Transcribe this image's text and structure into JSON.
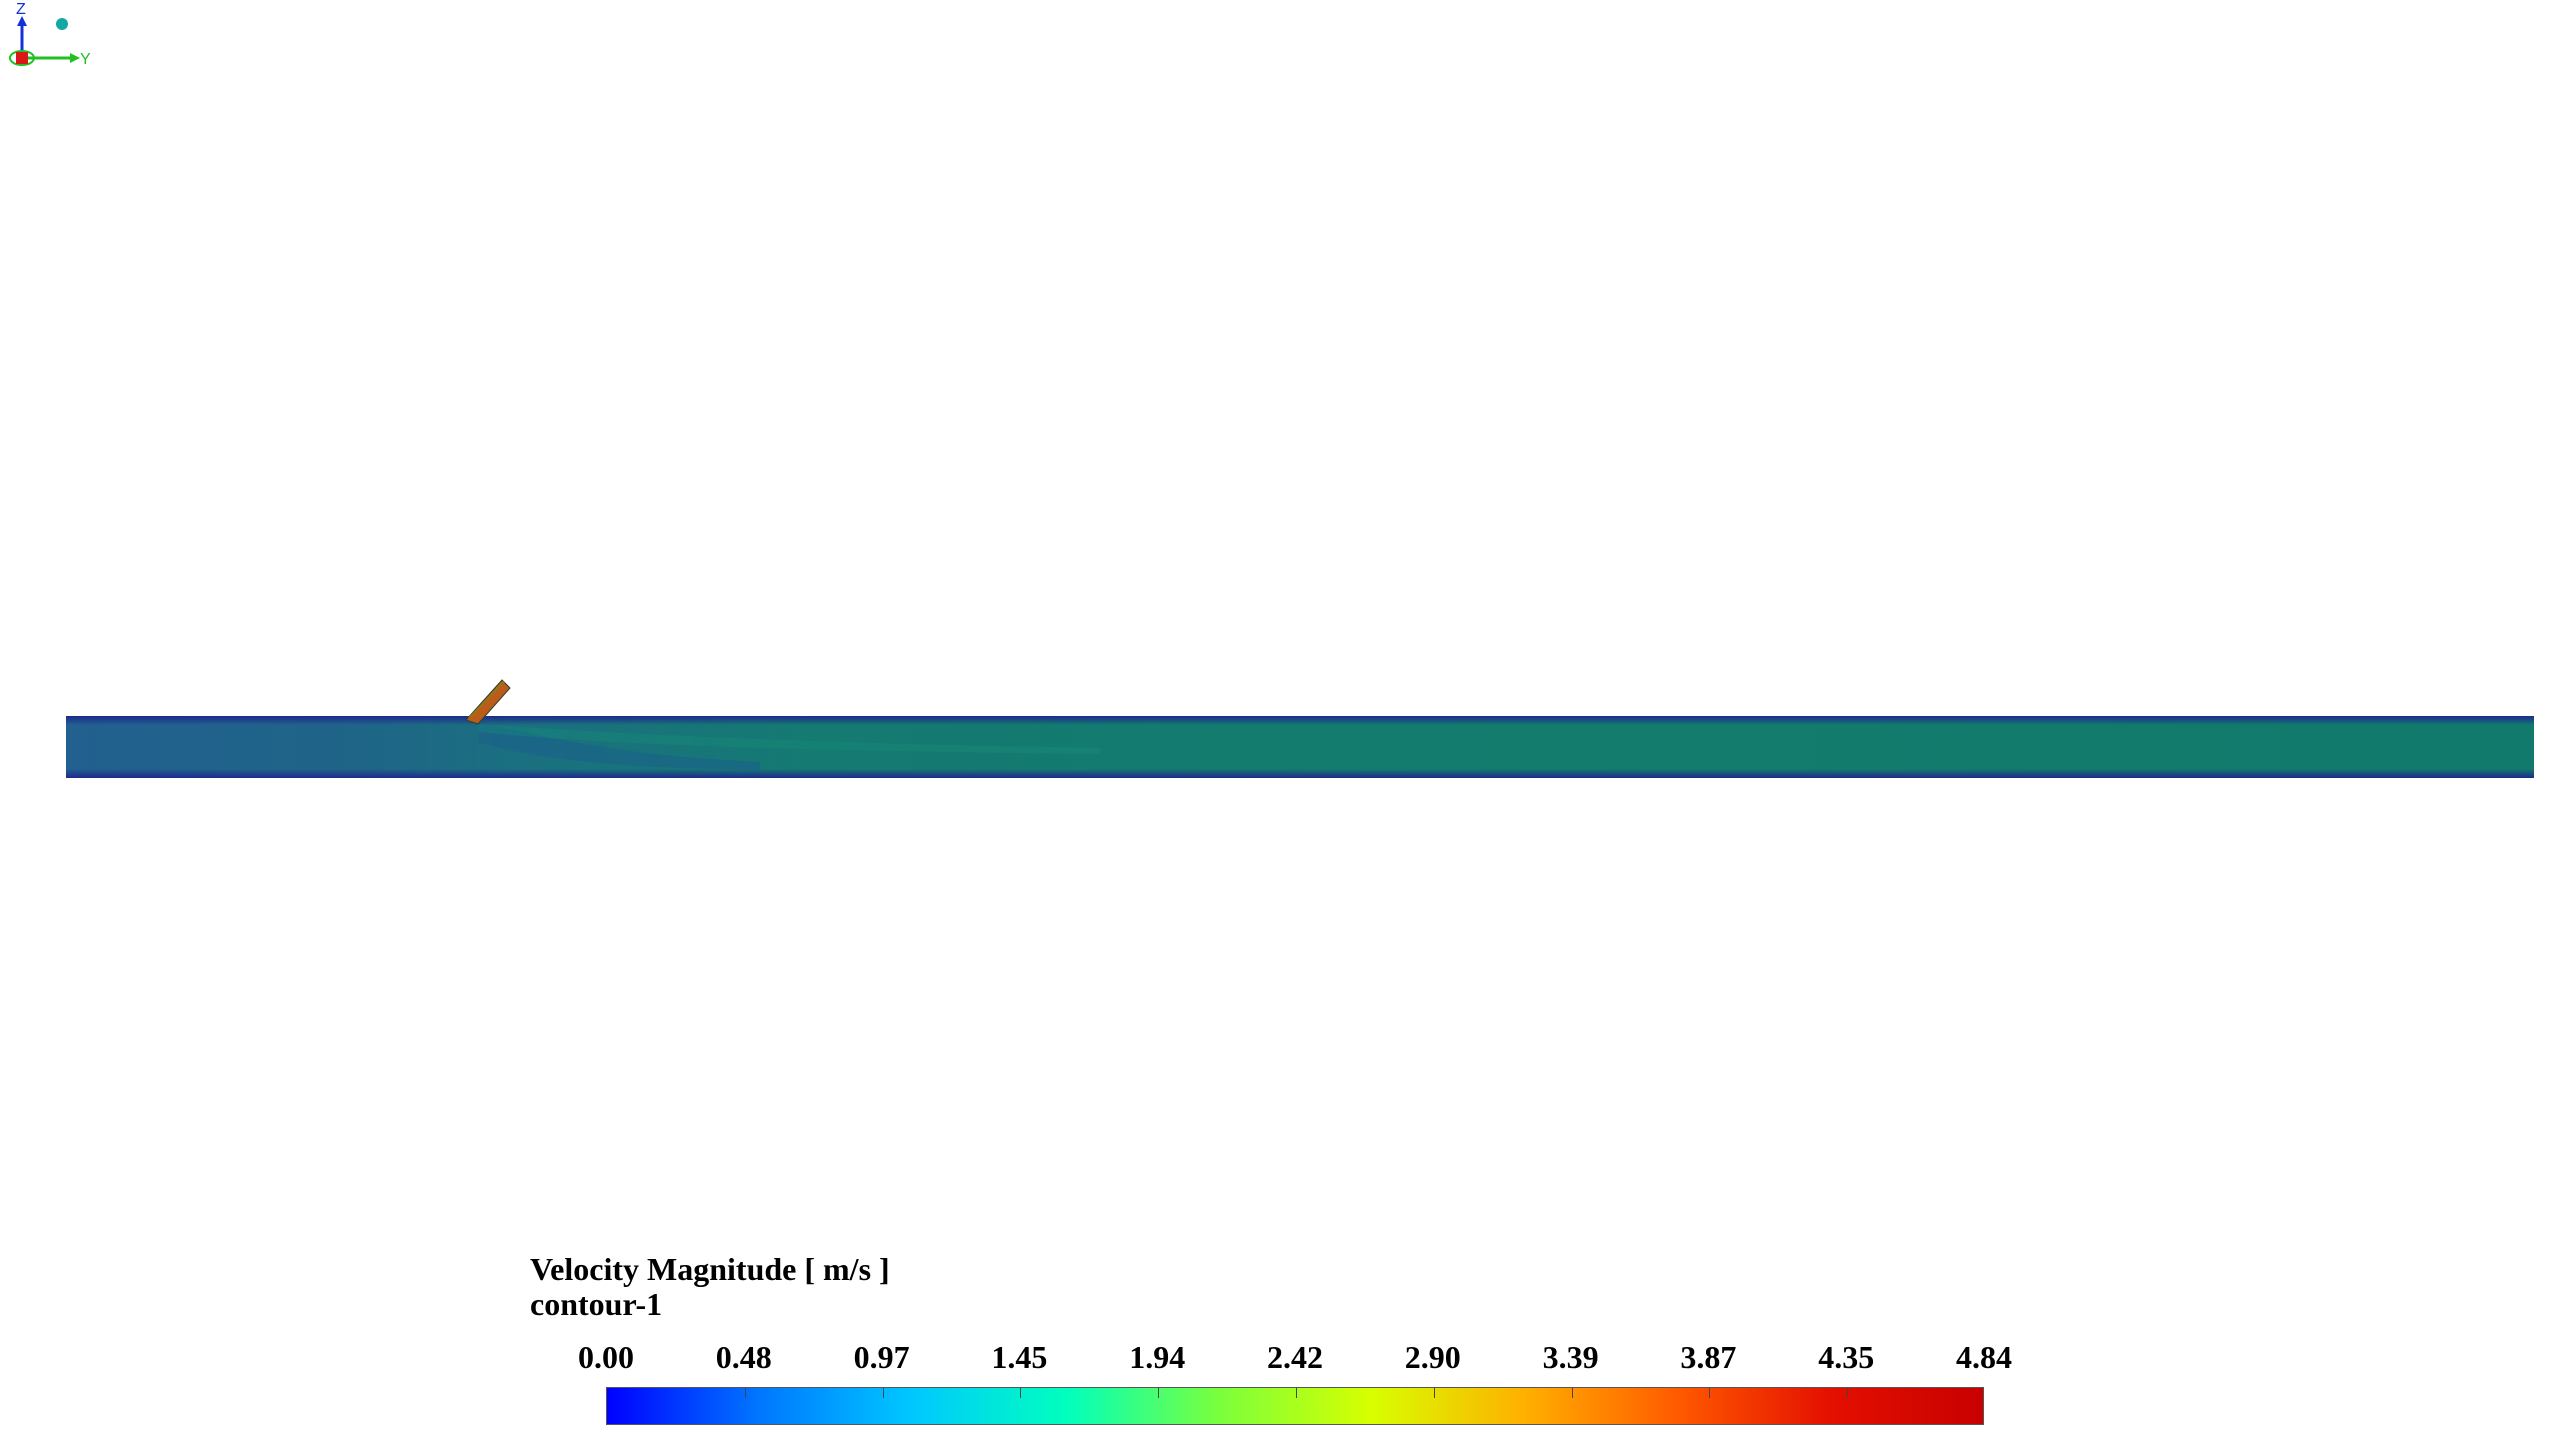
{
  "legend": {
    "title": "Velocity Magnitude [ m/s ]",
    "subtitle": "contour-1",
    "ticks": [
      "0.00",
      "0.48",
      "0.97",
      "1.45",
      "1.94",
      "2.42",
      "2.90",
      "3.39",
      "3.87",
      "4.35",
      "4.84"
    ],
    "range": [
      0.0,
      4.84
    ],
    "colormap": [
      "#0000ff",
      "#0077ff",
      "#00c8ff",
      "#00ffbe",
      "#7aff3c",
      "#d7ff00",
      "#ffb000",
      "#ff5a00",
      "#e41000",
      "#c80000"
    ]
  },
  "triad": {
    "z_label": "Z",
    "y_label": "Y"
  },
  "colors": {
    "pipe_core": "#137c6c",
    "pipe_inlet": "#1f6a8a",
    "pipe_wall": "#1a2f8a",
    "jet": "#b85a12"
  }
}
